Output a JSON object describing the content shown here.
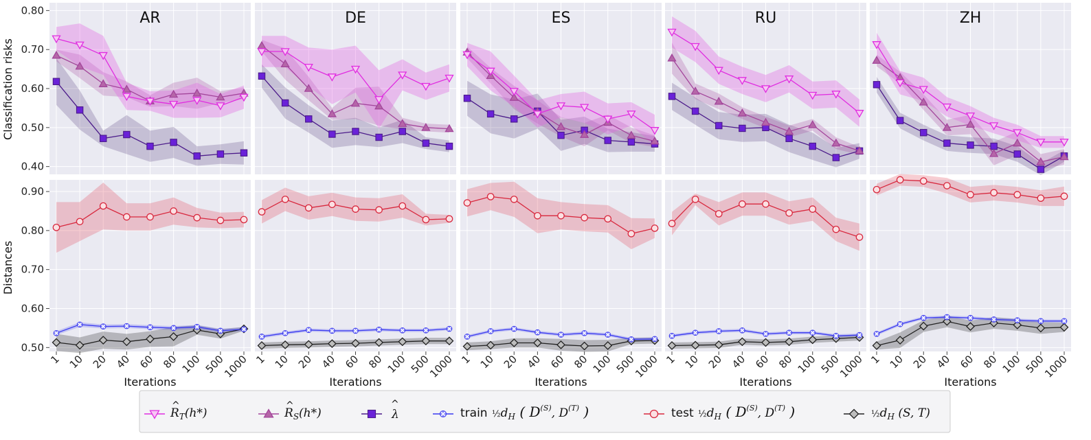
{
  "chart_data": {
    "type": "line",
    "categories": [
      "1",
      "10",
      "20",
      "40",
      "60",
      "80",
      "100",
      "500",
      "1000"
    ],
    "xlabel": "Iterations",
    "rows": [
      {
        "ylabel": "Classification risks",
        "ylim": [
          0.38,
          0.82
        ],
        "yticks": [
          "0.40",
          "0.50",
          "0.60",
          "0.70",
          "0.80"
        ]
      },
      {
        "ylabel": "Distances",
        "ylim": [
          0.49,
          0.93
        ],
        "yticks": [
          "0.50",
          "0.60",
          "0.70",
          "0.80",
          "0.90"
        ]
      }
    ],
    "series_styles": [
      {
        "key": "RT",
        "color": "#e02de0",
        "marker": "tri-down"
      },
      {
        "key": "RS",
        "color": "#a3459b",
        "marker": "tri-up"
      },
      {
        "key": "lambda",
        "color": "#4b1a8a",
        "fill": "#6a22d8",
        "marker": "square"
      },
      {
        "key": "train",
        "color": "#3a3af0",
        "marker": "x-circle"
      },
      {
        "key": "test",
        "color": "#d8283e",
        "marker": "circle"
      },
      {
        "key": "dST",
        "color": "#222222",
        "fill": "#bbbbbb",
        "marker": "diamond"
      }
    ],
    "legend": [
      {
        "key": "RT",
        "label": "R̂_T(h*)"
      },
      {
        "key": "RS",
        "label": "R̂_S(h*)"
      },
      {
        "key": "lambda",
        "label": "λ̂"
      },
      {
        "key": "train",
        "label": "train ½d̂_H(D̂(S), D̂(T))"
      },
      {
        "key": "test",
        "label": "test ½d̂_H(D̂(S), D̂(T))"
      },
      {
        "key": "dST",
        "label": "½d̂_H(S, T)"
      }
    ],
    "panels": [
      {
        "title": "AR",
        "top": {
          "RT": {
            "values": [
              0.728,
              0.712,
              0.685,
              0.58,
              0.568,
              0.56,
              0.57,
              0.556,
              0.578
            ],
            "band": [
              0.03,
              0.055,
              0.05,
              0.035,
              0.025,
              0.035,
              0.045,
              0.03,
              0.03
            ]
          },
          "RS": {
            "values": [
              0.685,
              0.657,
              0.612,
              0.598,
              0.568,
              0.585,
              0.588,
              0.578,
              0.588
            ],
            "band": [
              0.015,
              0.03,
              0.03,
              0.02,
              0.015,
              0.03,
              0.04,
              0.015,
              0.015
            ]
          },
          "lambda": {
            "values": [
              0.618,
              0.545,
              0.472,
              0.482,
              0.452,
              0.462,
              0.427,
              0.432,
              0.435
            ],
            "band": [
              0.06,
              0.05,
              0.02,
              0.05,
              0.04,
              0.04,
              0.025,
              0.025,
              0.03
            ]
          }
        },
        "bottom": {
          "test": {
            "values": [
              0.808,
              0.823,
              0.863,
              0.835,
              0.835,
              0.85,
              0.833,
              0.826,
              0.828
            ],
            "band": [
              0.065,
              0.05,
              0.06,
              0.035,
              0.035,
              0.035,
              0.025,
              0.02,
              0.02
            ]
          },
          "train": {
            "values": [
              0.537,
              0.559,
              0.554,
              0.555,
              0.552,
              0.55,
              0.553,
              0.543,
              0.547
            ],
            "band": [
              0.005,
              0.006,
              0.005,
              0.005,
              0.005,
              0.005,
              0.005,
              0.005,
              0.005
            ]
          },
          "dST": {
            "values": [
              0.513,
              0.506,
              0.519,
              0.515,
              0.522,
              0.528,
              0.545,
              0.535,
              0.548
            ],
            "band": [
              0.022,
              0.02,
              0.022,
              0.02,
              0.02,
              0.025,
              0.012,
              0.012,
              0.005
            ]
          }
        }
      },
      {
        "title": "DE",
        "top": {
          "RT": {
            "values": [
              0.695,
              0.695,
              0.655,
              0.63,
              0.65,
              0.572,
              0.635,
              0.606,
              0.627
            ],
            "band": [
              0.04,
              0.04,
              0.05,
              0.07,
              0.06,
              0.075,
              0.04,
              0.035,
              0.035
            ]
          },
          "RS": {
            "values": [
              0.71,
              0.663,
              0.6,
              0.535,
              0.562,
              0.555,
              0.51,
              0.5,
              0.497
            ],
            "band": [
              0.015,
              0.04,
              0.03,
              0.015,
              0.04,
              0.05,
              0.015,
              0.01,
              0.01
            ]
          },
          "lambda": {
            "values": [
              0.632,
              0.563,
              0.522,
              0.483,
              0.49,
              0.475,
              0.49,
              0.46,
              0.452
            ],
            "band": [
              0.03,
              0.04,
              0.035,
              0.035,
              0.035,
              0.025,
              0.03,
              0.015,
              0.015
            ]
          }
        },
        "bottom": {
          "test": {
            "values": [
              0.848,
              0.88,
              0.858,
              0.867,
              0.855,
              0.853,
              0.863,
              0.828,
              0.83
            ],
            "band": [
              0.03,
              0.03,
              0.03,
              0.03,
              0.03,
              0.03,
              0.03,
              0.015,
              0.01
            ]
          },
          "train": {
            "values": [
              0.528,
              0.537,
              0.545,
              0.543,
              0.543,
              0.546,
              0.544,
              0.544,
              0.548
            ],
            "band": [
              0.004,
              0.004,
              0.004,
              0.004,
              0.004,
              0.004,
              0.004,
              0.004,
              0.004
            ]
          },
          "dST": {
            "values": [
              0.505,
              0.507,
              0.508,
              0.51,
              0.511,
              0.513,
              0.515,
              0.517,
              0.517
            ],
            "band": [
              0.008,
              0.008,
              0.008,
              0.008,
              0.008,
              0.008,
              0.008,
              0.008,
              0.008
            ]
          }
        }
      },
      {
        "title": "ES",
        "top": {
          "RT": {
            "values": [
              0.687,
              0.645,
              0.593,
              0.535,
              0.556,
              0.552,
              0.522,
              0.535,
              0.493
            ],
            "band": [
              0.03,
              0.05,
              0.04,
              0.035,
              0.03,
              0.04,
              0.04,
              0.03,
              0.04
            ]
          },
          "RS": {
            "values": [
              0.693,
              0.633,
              0.577,
              0.54,
              0.502,
              0.482,
              0.513,
              0.48,
              0.465
            ],
            "band": [
              0.015,
              0.02,
              0.03,
              0.03,
              0.025,
              0.03,
              0.02,
              0.02,
              0.015
            ]
          },
          "lambda": {
            "values": [
              0.575,
              0.535,
              0.522,
              0.542,
              0.48,
              0.493,
              0.467,
              0.463,
              0.458
            ],
            "band": [
              0.045,
              0.05,
              0.05,
              0.045,
              0.04,
              0.035,
              0.03,
              0.025,
              0.02
            ]
          }
        },
        "bottom": {
          "test": {
            "values": [
              0.871,
              0.887,
              0.88,
              0.838,
              0.838,
              0.833,
              0.83,
              0.792,
              0.806
            ],
            "band": [
              0.035,
              0.035,
              0.045,
              0.045,
              0.035,
              0.035,
              0.035,
              0.04,
              0.025
            ]
          },
          "train": {
            "values": [
              0.528,
              0.542,
              0.548,
              0.539,
              0.533,
              0.537,
              0.533,
              0.521,
              0.522
            ],
            "band": [
              0.004,
              0.004,
              0.004,
              0.004,
              0.004,
              0.004,
              0.004,
              0.004,
              0.004
            ]
          },
          "dST": {
            "values": [
              0.503,
              0.506,
              0.512,
              0.512,
              0.507,
              0.504,
              0.505,
              0.517,
              0.518
            ],
            "band": [
              0.01,
              0.01,
              0.012,
              0.012,
              0.015,
              0.015,
              0.015,
              0.008,
              0.008
            ]
          }
        }
      },
      {
        "title": "RU",
        "top": {
          "RT": {
            "values": [
              0.745,
              0.708,
              0.647,
              0.621,
              0.6,
              0.625,
              0.583,
              0.586,
              0.537
            ],
            "band": [
              0.04,
              0.04,
              0.035,
              0.035,
              0.035,
              0.035,
              0.035,
              0.035,
              0.035
            ]
          },
          "RS": {
            "values": [
              0.678,
              0.593,
              0.567,
              0.537,
              0.513,
              0.49,
              0.507,
              0.46,
              0.44
            ],
            "band": [
              0.04,
              0.02,
              0.02,
              0.015,
              0.015,
              0.015,
              0.015,
              0.015,
              0.01
            ]
          },
          "lambda": {
            "values": [
              0.58,
              0.542,
              0.505,
              0.498,
              0.5,
              0.472,
              0.452,
              0.423,
              0.44
            ],
            "band": [
              0.035,
              0.035,
              0.035,
              0.035,
              0.035,
              0.035,
              0.035,
              0.025,
              0.02
            ]
          }
        },
        "bottom": {
          "test": {
            "values": [
              0.818,
              0.88,
              0.843,
              0.868,
              0.868,
              0.845,
              0.855,
              0.803,
              0.783
            ],
            "band": [
              0.03,
              0.015,
              0.03,
              0.03,
              0.03,
              0.03,
              0.03,
              0.03,
              0.035
            ]
          },
          "train": {
            "values": [
              0.53,
              0.538,
              0.542,
              0.544,
              0.535,
              0.538,
              0.538,
              0.53,
              0.532
            ],
            "band": [
              0.004,
              0.004,
              0.004,
              0.004,
              0.004,
              0.004,
              0.004,
              0.004,
              0.004
            ]
          },
          "dST": {
            "values": [
              0.505,
              0.506,
              0.507,
              0.515,
              0.513,
              0.515,
              0.52,
              0.523,
              0.526
            ],
            "band": [
              0.008,
              0.008,
              0.008,
              0.008,
              0.008,
              0.008,
              0.008,
              0.008,
              0.008
            ]
          }
        }
      },
      {
        "title": "ZH",
        "top": {
          "RT": {
            "values": [
              0.713,
              0.615,
              0.598,
              0.553,
              0.53,
              0.505,
              0.487,
              0.463,
              0.463
            ],
            "band": [
              0.03,
              0.03,
              0.03,
              0.025,
              0.025,
              0.02,
              0.02,
              0.015,
              0.015
            ]
          },
          "RS": {
            "values": [
              0.672,
              0.628,
              0.565,
              0.5,
              0.508,
              0.433,
              0.46,
              0.412,
              0.425
            ],
            "band": [
              0.015,
              0.015,
              0.02,
              0.02,
              0.025,
              0.03,
              0.03,
              0.02,
              0.02
            ]
          },
          "lambda": {
            "values": [
              0.61,
              0.518,
              0.487,
              0.46,
              0.455,
              0.452,
              0.432,
              0.393,
              0.427
            ],
            "band": [
              0.02,
              0.02,
              0.02,
              0.02,
              0.02,
              0.02,
              0.02,
              0.015,
              0.015
            ]
          }
        },
        "bottom": {
          "test": {
            "values": [
              0.905,
              0.93,
              0.927,
              0.915,
              0.892,
              0.897,
              0.892,
              0.883,
              0.888
            ],
            "band": [
              0.015,
              0.015,
              0.015,
              0.02,
              0.02,
              0.02,
              0.02,
              0.02,
              0.025
            ]
          },
          "train": {
            "values": [
              0.535,
              0.56,
              0.576,
              0.578,
              0.576,
              0.572,
              0.57,
              0.568,
              0.568
            ],
            "band": [
              0.004,
              0.004,
              0.004,
              0.004,
              0.004,
              0.004,
              0.004,
              0.004,
              0.004
            ]
          },
          "dST": {
            "values": [
              0.505,
              0.519,
              0.555,
              0.567,
              0.554,
              0.563,
              0.558,
              0.55,
              0.552
            ],
            "band": [
              0.01,
              0.02,
              0.015,
              0.015,
              0.015,
              0.015,
              0.015,
              0.015,
              0.012
            ]
          }
        }
      }
    ]
  }
}
